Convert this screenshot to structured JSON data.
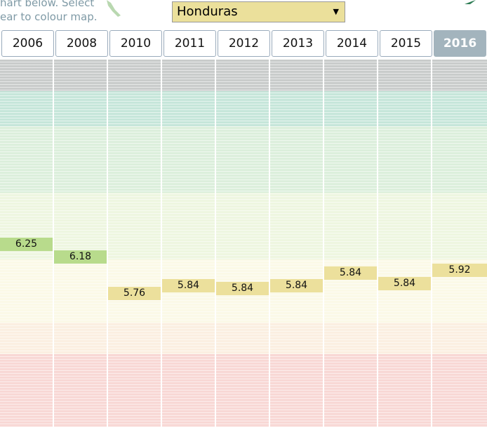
{
  "intro": [
    "hart below. Select",
    "ear to colour map."
  ],
  "country": "Honduras",
  "years": [
    "2006",
    "2008",
    "2010",
    "2011",
    "2012",
    "2013",
    "2014",
    "2015",
    "2016"
  ],
  "columns": [
    {
      "value": 6.25,
      "color": "#b8db8c"
    },
    {
      "value": 6.18,
      "color": "#b8db8c"
    },
    {
      "value": 5.76,
      "color": "#ece09c"
    },
    {
      "value": 5.84,
      "color": "#ece09c"
    },
    {
      "value": 5.84,
      "color": "#ece09c"
    },
    {
      "value": 5.84,
      "color": "#ece09c"
    },
    {
      "value": 5.84,
      "color": "#ece09c"
    },
    {
      "value": 5.84,
      "color": "#ece09c"
    },
    {
      "value": 5.92,
      "color": "#ece09c"
    }
  ]
}
